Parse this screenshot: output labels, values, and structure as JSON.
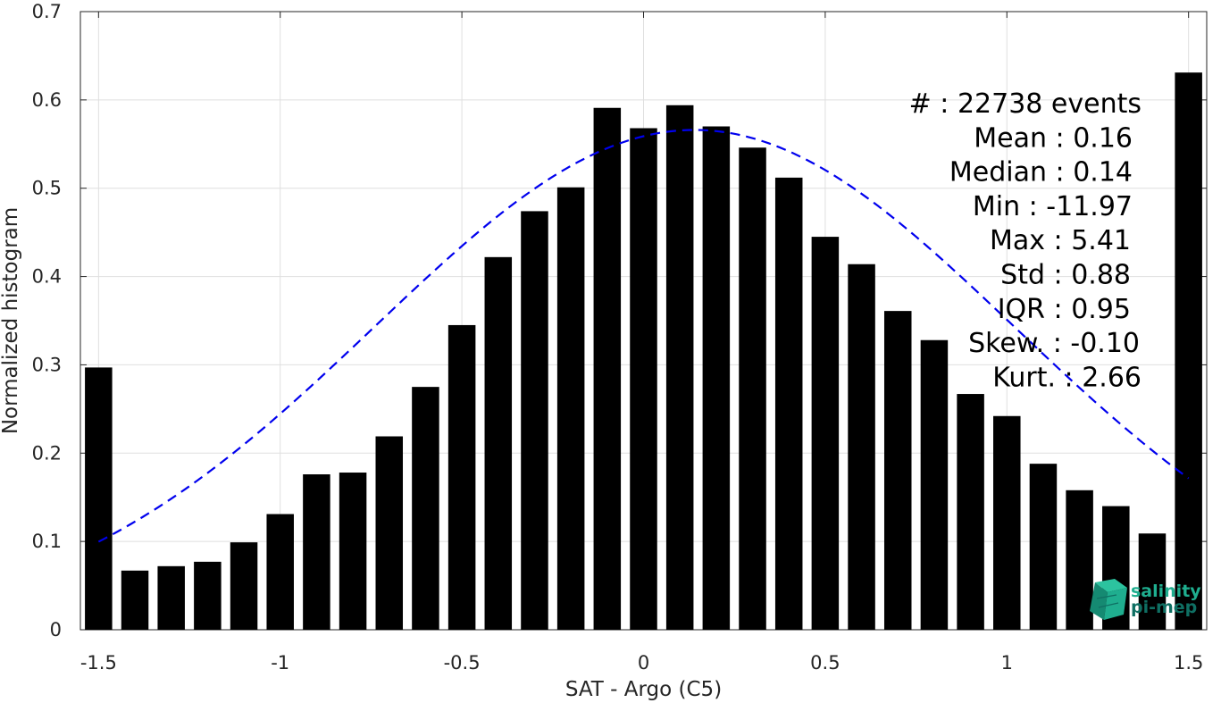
{
  "chart_data": {
    "type": "bar",
    "xlabel": "SAT - Argo (C5)",
    "ylabel": "Normalized histogram",
    "xlim": [
      -1.55,
      1.55
    ],
    "ylim": [
      0,
      0.7
    ],
    "xticks": [
      -1.5,
      -1,
      -0.5,
      0,
      0.5,
      1,
      1.5
    ],
    "xtick_labels": [
      "-1.5",
      "-1",
      "-0.5",
      "0",
      "0.5",
      "1",
      "1.5"
    ],
    "yticks": [
      0,
      0.1,
      0.2,
      0.3,
      0.4,
      0.5,
      0.6,
      0.7
    ],
    "ytick_labels": [
      "0",
      "0.1",
      "0.2",
      "0.3",
      "0.4",
      "0.5",
      "0.6",
      "0.7"
    ],
    "grid": true,
    "bar_width": 0.075,
    "bar_color": "#000000",
    "x": [
      -1.5,
      -1.4,
      -1.3,
      -1.2,
      -1.1,
      -1.0,
      -0.9,
      -0.8,
      -0.7,
      -0.6,
      -0.5,
      -0.4,
      -0.3,
      -0.2,
      -0.1,
      0.0,
      0.1,
      0.2,
      0.3,
      0.4,
      0.5,
      0.6,
      0.7,
      0.8,
      0.9,
      1.0,
      1.1,
      1.2,
      1.3,
      1.4,
      1.5
    ],
    "values": [
      0.297,
      0.067,
      0.072,
      0.077,
      0.099,
      0.131,
      0.176,
      0.178,
      0.219,
      0.275,
      0.345,
      0.422,
      0.474,
      0.501,
      0.591,
      0.568,
      0.594,
      0.57,
      0.546,
      0.512,
      0.445,
      0.414,
      0.361,
      0.328,
      0.267,
      0.242,
      0.188,
      0.158,
      0.14,
      0.109,
      0.631
    ],
    "fit_curve": {
      "style": "dashed",
      "color": "#0000ee",
      "mean": 0.14,
      "std": 0.88,
      "peak": 0.566,
      "x_range": [
        -1.5,
        1.5
      ]
    },
    "annotations": [
      "#  : 22738 events",
      "Mean : 0.16",
      "Median : 0.14",
      "Min : -11.97",
      "Max : 5.41",
      "Std : 0.88",
      "IQR : 0.95",
      "Skew. : -0.10",
      "Kurt. : 2.66"
    ]
  },
  "logo": {
    "line1": "salinity",
    "line2": "pi-mep",
    "color_primary": "#1fae8f",
    "color_secondary": "#0f6f63"
  }
}
